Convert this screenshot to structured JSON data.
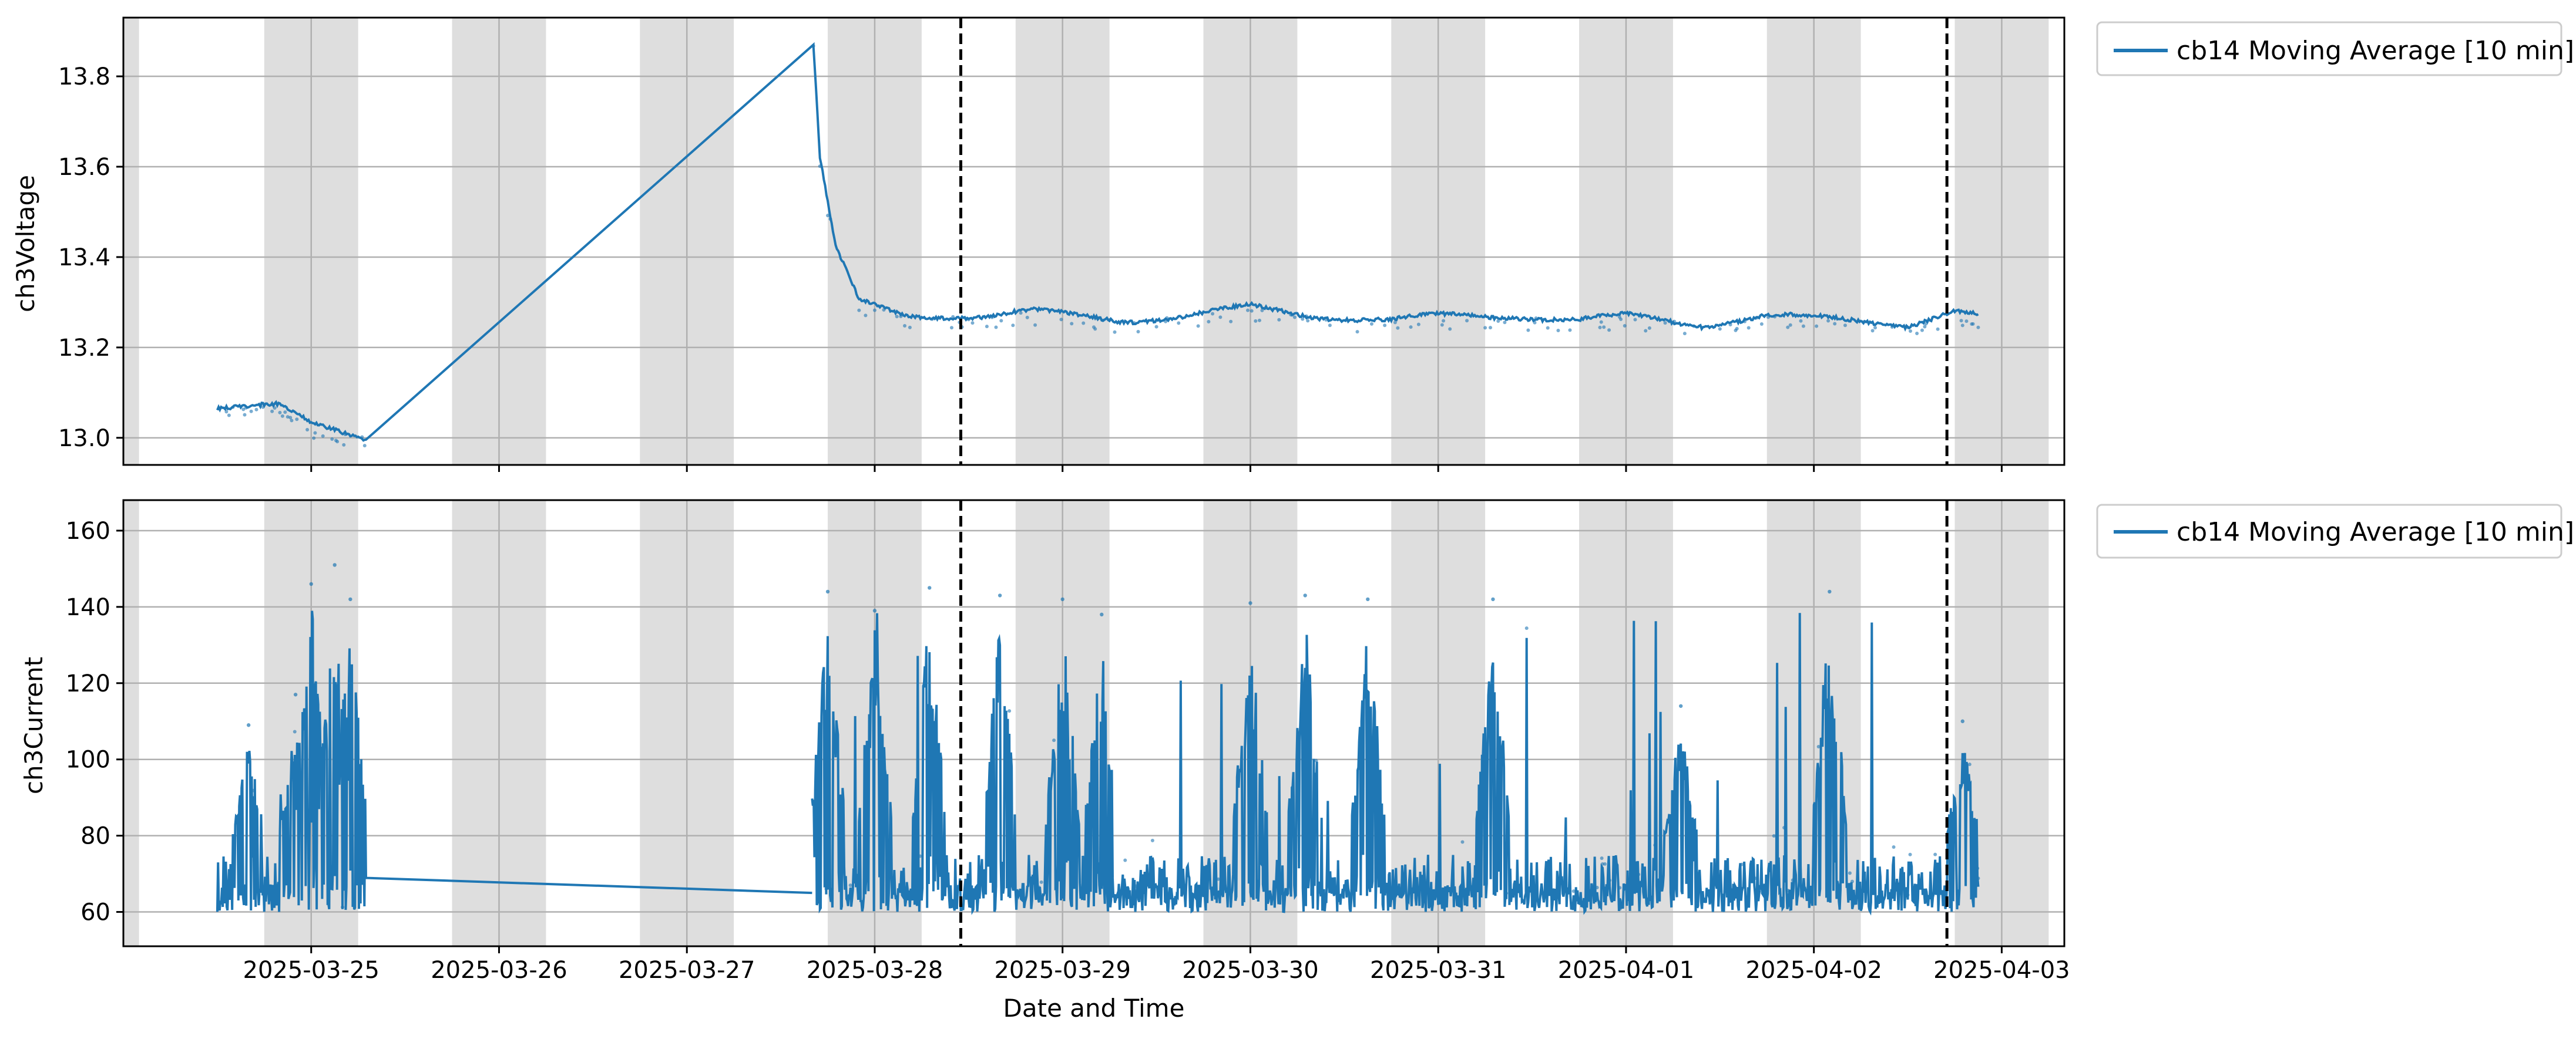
{
  "chart_data": [
    {
      "type": "line",
      "ylabel": "ch3Voltage",
      "xlabel": "",
      "ylim": [
        12.94,
        13.93
      ],
      "yticks": [
        13.0,
        13.2,
        13.4,
        13.6,
        13.8
      ],
      "ytick_labels": [
        "13.0",
        "13.2",
        "13.4",
        "13.6",
        "13.8"
      ],
      "grid": true,
      "legend_position": "outside-top-right",
      "series": [
        {
          "name": "cb14 Moving Average [10 min]",
          "color": "#1f77b4",
          "x": [
            "2025-03-24 12:00",
            "2025-03-24 20:00",
            "2025-03-25 00:00",
            "2025-03-25 07:00",
            "2025-03-27 16:10",
            "2025-03-27 17:00",
            "2025-03-27 19:00",
            "2025-03-27 22:00",
            "2025-03-28 04:00",
            "2025-03-28 14:00",
            "2025-03-28 20:00",
            "2025-03-29 08:00",
            "2025-03-29 16:00",
            "2025-03-30 00:00",
            "2025-03-30 08:00",
            "2025-03-30 18:00",
            "2025-03-31 00:00",
            "2025-03-31 10:00",
            "2025-03-31 18:00",
            "2025-04-01 00:00",
            "2025-04-01 10:00",
            "2025-04-01 18:00",
            "2025-04-02 06:00",
            "2025-04-02 12:00",
            "2025-04-02 18:00",
            "2025-04-02 21:00"
          ],
          "values": [
            13.07,
            13.07,
            13.03,
            13.0,
            13.87,
            13.62,
            13.42,
            13.3,
            13.27,
            13.27,
            13.28,
            13.26,
            13.27,
            13.29,
            13.27,
            13.26,
            13.27,
            13.27,
            13.26,
            13.27,
            13.25,
            13.27,
            13.26,
            13.25,
            13.28,
            13.27
          ]
        }
      ]
    },
    {
      "type": "line",
      "ylabel": "ch3Current",
      "xlabel": "Date and Time",
      "ylim": [
        51,
        168
      ],
      "yticks": [
        60,
        80,
        100,
        120,
        140,
        160
      ],
      "ytick_labels": [
        "60",
        "80",
        "100",
        "120",
        "140",
        "160"
      ],
      "xtick_labels": [
        "2025-03-25",
        "2025-03-26",
        "2025-03-27",
        "2025-03-28",
        "2025-03-29",
        "2025-03-30",
        "2025-03-31",
        "2025-04-01",
        "2025-04-02",
        "2025-04-03"
      ],
      "grid": true,
      "legend_position": "outside-top-right",
      "series": [
        {
          "name": "cb14 Moving Average [10 min]",
          "color": "#1f77b4",
          "x": [
            "2025-03-24 12:00",
            "2025-03-25 07:00",
            "2025-03-27 16:00",
            "2025-04-02 21:00"
          ],
          "values": [
            65,
            66,
            65,
            64
          ],
          "baseline_range": [
            60,
            75
          ],
          "spikes": [
            {
              "x": "2025-03-24 16:00",
              "y": 105
            },
            {
              "x": "2025-03-24 22:00",
              "y": 113
            },
            {
              "x": "2025-03-25 00:00",
              "y": 142
            },
            {
              "x": "2025-03-25 03:00",
              "y": 147
            },
            {
              "x": "2025-03-25 05:00",
              "y": 138
            },
            {
              "x": "2025-03-27 18:00",
              "y": 140
            },
            {
              "x": "2025-03-28 00:00",
              "y": 135
            },
            {
              "x": "2025-03-28 07:00",
              "y": 141
            },
            {
              "x": "2025-03-28 16:00",
              "y": 139
            },
            {
              "x": "2025-03-29 00:00",
              "y": 138
            },
            {
              "x": "2025-03-29 05:00",
              "y": 134
            },
            {
              "x": "2025-03-30 00:00",
              "y": 137
            },
            {
              "x": "2025-03-30 07:00",
              "y": 139
            },
            {
              "x": "2025-03-30 15:00",
              "y": 138
            },
            {
              "x": "2025-03-31 07:00",
              "y": 138
            },
            {
              "x": "2025-04-01 07:00",
              "y": 110
            },
            {
              "x": "2025-04-02 02:00",
              "y": 140
            },
            {
              "x": "2025-04-02 19:00",
              "y": 106
            }
          ]
        }
      ]
    }
  ],
  "shared_x": {
    "xlim": [
      "2025-03-24 00:00",
      "2025-04-03 08:00"
    ],
    "xtick_labels": [
      "2025-03-25",
      "2025-03-26",
      "2025-03-27",
      "2025-03-28",
      "2025-03-29",
      "2025-03-30",
      "2025-03-31",
      "2025-04-01",
      "2025-04-02",
      "2025-04-03"
    ],
    "night_shading": [
      [
        "2025-03-24 00:00",
        "2025-03-24 02:00"
      ],
      [
        "2025-03-24 18:00",
        "2025-03-25 06:00"
      ],
      [
        "2025-03-25 18:00",
        "2025-03-26 06:00"
      ],
      [
        "2025-03-26 18:00",
        "2025-03-27 06:00"
      ],
      [
        "2025-03-27 18:00",
        "2025-03-28 06:00"
      ],
      [
        "2025-03-28 18:00",
        "2025-03-29 06:00"
      ],
      [
        "2025-03-29 18:00",
        "2025-03-30 06:00"
      ],
      [
        "2025-03-30 18:00",
        "2025-03-31 06:00"
      ],
      [
        "2025-03-31 18:00",
        "2025-04-01 06:00"
      ],
      [
        "2025-04-01 18:00",
        "2025-04-02 06:00"
      ],
      [
        "2025-04-02 18:00",
        "2025-04-03 06:00"
      ]
    ],
    "event_lines": [
      "2025-03-28 11:00",
      "2025-04-02 17:00"
    ],
    "shading_color": "#dedede",
    "event_line_color": "#000000"
  }
}
